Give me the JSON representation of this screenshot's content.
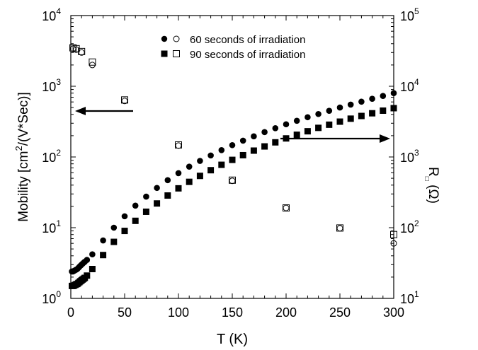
{
  "chart_data": {
    "type": "scatter",
    "title": "",
    "xlabel": "T (K)",
    "ylabel_left": "Mobility [cm²/(V*Sec)]",
    "ylabel_right": "R□ (Ω)",
    "xlim": [
      0,
      300
    ],
    "ylim_left": [
      1,
      10000
    ],
    "ylim_right": [
      10,
      100000
    ],
    "yscale": "log",
    "grid": false,
    "x_ticks": [
      "0",
      "50",
      "100",
      "150",
      "200",
      "250",
      "300"
    ],
    "y_left_ticks": [
      {
        "base": "10",
        "exp": "0",
        "value": 1
      },
      {
        "base": "10",
        "exp": "1",
        "value": 10
      },
      {
        "base": "10",
        "exp": "2",
        "value": 100
      },
      {
        "base": "10",
        "exp": "3",
        "value": 1000
      },
      {
        "base": "10",
        "exp": "4",
        "value": 10000
      }
    ],
    "y_right_ticks": [
      {
        "base": "10",
        "exp": "1",
        "value": 10
      },
      {
        "base": "10",
        "exp": "2",
        "value": 100
      },
      {
        "base": "10",
        "exp": "3",
        "value": 1000
      },
      {
        "base": "10",
        "exp": "4",
        "value": 10000
      },
      {
        "base": "10",
        "exp": "5",
        "value": 100000
      }
    ],
    "legend_position": "top-center",
    "legend": [
      {
        "label": "60 seconds of irradiation",
        "filled_marker": "circle",
        "open_marker": "circle"
      },
      {
        "label": "90 seconds of irradiation",
        "filled_marker": "square",
        "open_marker": "square"
      }
    ],
    "annotations": [
      {
        "type": "arrow",
        "direction": "left",
        "meaning": "mobility points read on left axis"
      },
      {
        "type": "arrow",
        "direction": "right",
        "meaning": "resistance points read on right axis"
      }
    ],
    "series": [
      {
        "name": "60 seconds of irradiation",
        "quantity": "resistance",
        "axis": "right",
        "marker": "filled-circle",
        "x": [
          1,
          2,
          3,
          4,
          5,
          6,
          7,
          8,
          9,
          10,
          11,
          12,
          13,
          15,
          20,
          30,
          40,
          50,
          60,
          70,
          80,
          90,
          100,
          110,
          120,
          130,
          140,
          150,
          160,
          170,
          180,
          190,
          200,
          210,
          220,
          230,
          240,
          250,
          260,
          270,
          280,
          290,
          300
        ],
        "y": [
          24,
          24,
          24.5,
          25,
          25.5,
          26,
          27,
          28,
          29,
          30,
          31,
          32,
          33,
          35,
          42,
          66,
          100,
          145,
          205,
          275,
          365,
          470,
          590,
          730,
          880,
          1050,
          1250,
          1470,
          1700,
          1960,
          2250,
          2550,
          2900,
          3250,
          3650,
          4050,
          4500,
          5000,
          5500,
          6050,
          6650,
          7300,
          8000
        ]
      },
      {
        "name": "90 seconds of irradiation",
        "quantity": "resistance",
        "axis": "right",
        "marker": "filled-square",
        "x": [
          1,
          2,
          3,
          4,
          5,
          6,
          7,
          8,
          9,
          10,
          11,
          12,
          13,
          15,
          20,
          30,
          40,
          50,
          60,
          70,
          80,
          90,
          100,
          110,
          120,
          130,
          140,
          150,
          160,
          170,
          180,
          190,
          200,
          210,
          220,
          230,
          240,
          250,
          260,
          270,
          280,
          290,
          300
        ],
        "y": [
          15,
          15,
          15.2,
          15.5,
          15.8,
          16,
          16.5,
          17,
          17.5,
          18,
          18.5,
          19,
          19.5,
          21,
          26,
          41,
          63,
          90,
          125,
          168,
          220,
          285,
          360,
          445,
          540,
          650,
          775,
          910,
          1060,
          1230,
          1410,
          1610,
          1830,
          2060,
          2310,
          2580,
          2860,
          3160,
          3480,
          3800,
          4150,
          4520,
          4900
        ]
      },
      {
        "name": "60 seconds of irradiation",
        "quantity": "mobility",
        "axis": "left",
        "marker": "open-circle",
        "x": [
          2,
          5,
          10,
          20,
          50,
          100,
          150,
          200,
          250,
          300
        ],
        "y": [
          3400,
          3300,
          3000,
          2000,
          620,
          145,
          46,
          19,
          9.8,
          6
        ]
      },
      {
        "name": "90 seconds of irradiation",
        "quantity": "mobility",
        "axis": "left",
        "marker": "open-square",
        "x": [
          2,
          5,
          10,
          20,
          50,
          100,
          150,
          200,
          250,
          300
        ],
        "y": [
          3500,
          3400,
          3100,
          2200,
          640,
          148,
          47,
          19,
          9.9,
          8
        ]
      }
    ]
  }
}
